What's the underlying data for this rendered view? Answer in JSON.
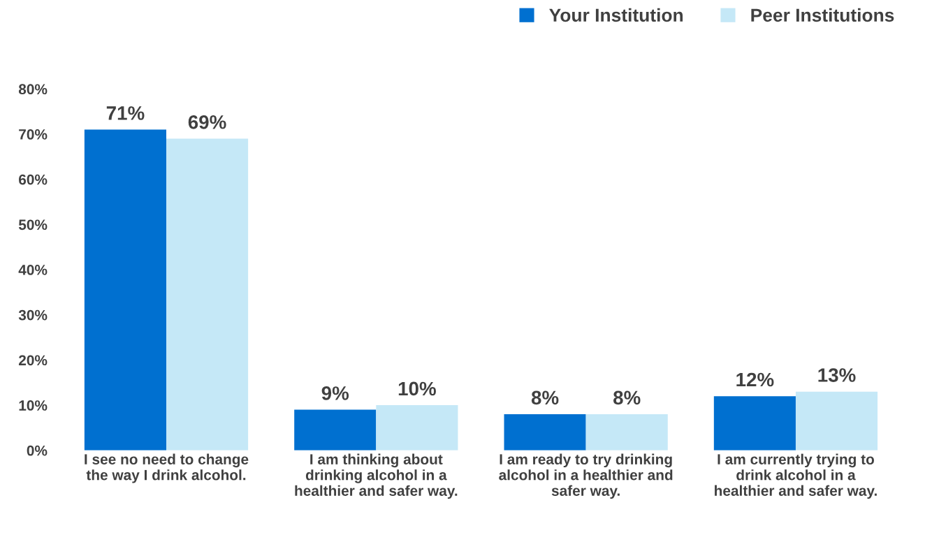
{
  "chart_data": {
    "type": "bar",
    "categories": [
      "I see no need to change the way I drink alcohol.",
      "I am thinking about drinking alcohol in a healthier and safer way.",
      "I am ready to try drinking alcohol in a healthier and safer way.",
      "I am currently trying to drink alcohol in a healthier and safer way."
    ],
    "series": [
      {
        "name": "Your Institution",
        "color": "#0070d0",
        "values": [
          71,
          9,
          8,
          12
        ],
        "value_labels": [
          "71%",
          "9%",
          "8%",
          "12%"
        ]
      },
      {
        "name": "Peer Institutions",
        "color": "#c5e8f7",
        "values": [
          69,
          10,
          8,
          13
        ],
        "value_labels": [
          "69%",
          "10%",
          "8%",
          "13%"
        ]
      }
    ],
    "ylim": [
      0,
      80
    ],
    "yticks": [
      {
        "value": 0,
        "label": "0%"
      },
      {
        "value": 10,
        "label": "10%"
      },
      {
        "value": 20,
        "label": "20%"
      },
      {
        "value": 30,
        "label": "30%"
      },
      {
        "value": 40,
        "label": "40%"
      },
      {
        "value": 50,
        "label": "50%"
      },
      {
        "value": 60,
        "label": "60%"
      },
      {
        "value": 70,
        "label": "70%"
      },
      {
        "value": 80,
        "label": "80%"
      }
    ],
    "grid": false,
    "legend": "top right"
  }
}
